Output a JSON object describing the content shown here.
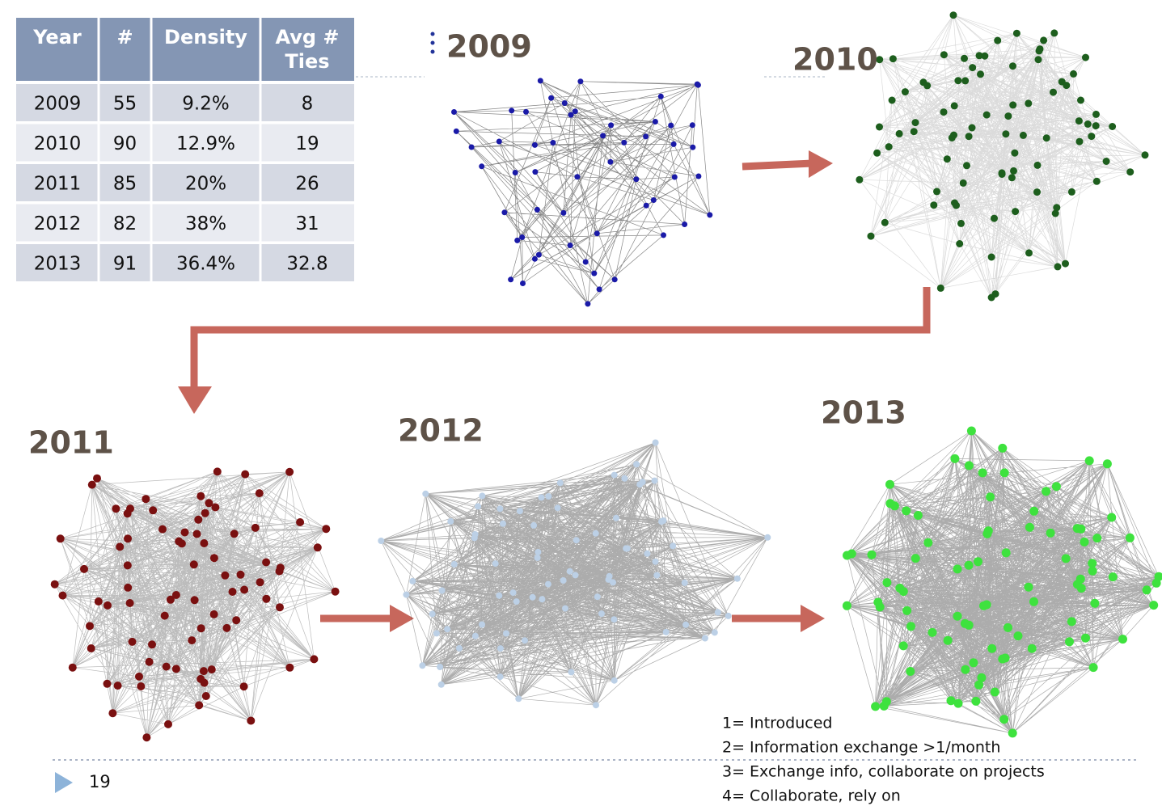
{
  "table": {
    "header": [
      "Year",
      "#",
      "Density",
      "Avg # Ties"
    ],
    "rows": [
      [
        "2009",
        "55",
        "9.2%",
        "8"
      ],
      [
        "2010",
        "90",
        "12.9%",
        "19"
      ],
      [
        "2011",
        "85",
        "20%",
        "26"
      ],
      [
        "2012",
        "82",
        "38%",
        "31"
      ],
      [
        "2013",
        "91",
        "36.4%",
        "32.8"
      ]
    ]
  },
  "networks": [
    {
      "label": "2009"
    },
    {
      "label": "2010"
    },
    {
      "label": "2011"
    },
    {
      "label": "2012"
    },
    {
      "label": "2013"
    }
  ],
  "legend": [
    "1= Introduced",
    "2= Information exchange >1/month",
    "3= Exchange info, collaborate on projects",
    "4= Collaborate, rely on"
  ],
  "page_number": "19"
}
